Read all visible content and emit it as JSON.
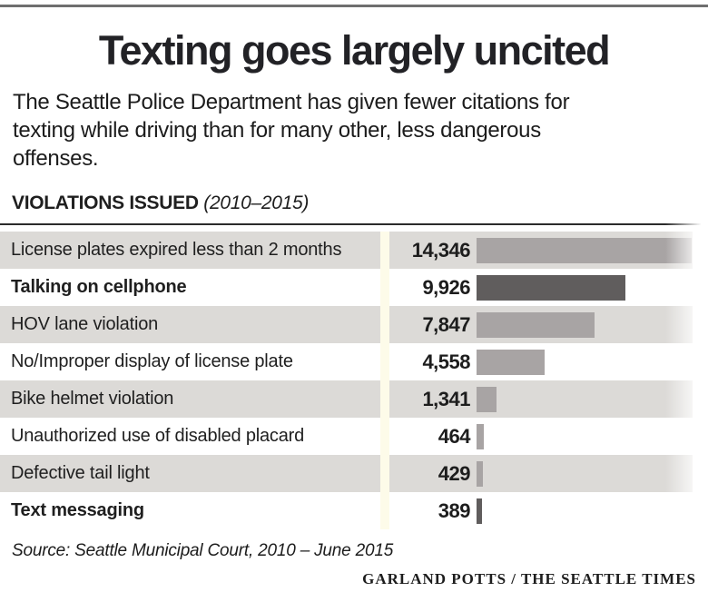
{
  "header": {
    "title": "Texting goes largely uncited",
    "subtitle_lines": [
      "The Seattle Police Department has given fewer citations for",
      "texting while driving than for many other, less dangerous",
      "offenses."
    ]
  },
  "section": {
    "label": "VIOLATIONS ISSUED",
    "period": "(2010–2015)"
  },
  "chart_data": {
    "type": "bar",
    "orientation": "horizontal",
    "title": "VIOLATIONS ISSUED (2010–2015)",
    "xlim": [
      0,
      14500
    ],
    "grid": false,
    "legend": false,
    "categories": [
      "License plates expired less than 2 months",
      "Talking on cellphone",
      "HOV lane violation",
      "No/Improper display of license plate",
      "Bike helmet violation",
      "Unauthorized use of disabled placard",
      "Defective tail light",
      "Text messaging"
    ],
    "values": [
      14346,
      9926,
      7847,
      4558,
      1341,
      464,
      429,
      389
    ],
    "rows": [
      {
        "label": "License plates expired less than 2 months",
        "value": 14346,
        "value_label": "14,346",
        "bold": false
      },
      {
        "label": "Talking on cellphone",
        "value": 9926,
        "value_label": "9,926",
        "bold": true
      },
      {
        "label": "HOV lane violation",
        "value": 7847,
        "value_label": "7,847",
        "bold": false
      },
      {
        "label": "No/Improper display of license plate",
        "value": 4558,
        "value_label": "4,558",
        "bold": false
      },
      {
        "label": "Bike helmet violation",
        "value": 1341,
        "value_label": "1,341",
        "bold": false
      },
      {
        "label": "Unauthorized use of disabled placard",
        "value": 464,
        "value_label": "464",
        "bold": false
      },
      {
        "label": "Defective tail light",
        "value": 429,
        "value_label": "429",
        "bold": false
      },
      {
        "label": "Text messaging",
        "value": 389,
        "value_label": "389",
        "bold": true
      }
    ],
    "bar_color": "#a8a4a4",
    "highlight_bar_color": "#605d5d"
  },
  "footer": {
    "source": "Source: Seattle Municipal Court, 2010 – June 2015",
    "credit": "GARLAND POTTS / THE SEATTLE TIMES"
  },
  "colors": {
    "stripe": "#dcdad7",
    "gap_band": "#fdfbe9",
    "top_rule": "#6f6f6f",
    "section_rule": "#2b2b2b"
  }
}
